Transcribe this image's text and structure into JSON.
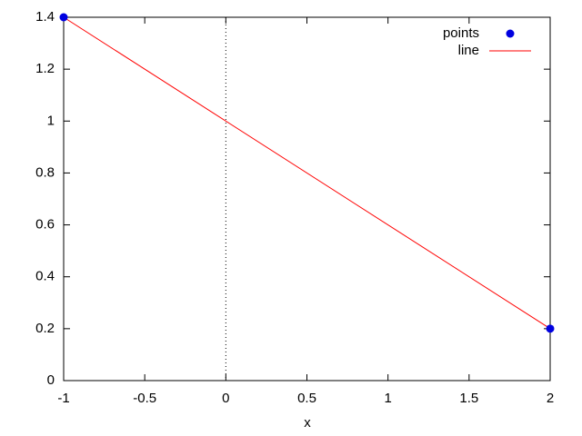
{
  "chart_data": {
    "type": "line",
    "xlabel": "x",
    "xlim": [
      -1,
      2
    ],
    "xticks": [
      -1,
      -0.5,
      0,
      0.5,
      1,
      1.5,
      2
    ],
    "ylim": [
      0,
      1.4
    ],
    "yticks": [
      0,
      0.2,
      0.4,
      0.6,
      0.8,
      1,
      1.2,
      1.4
    ],
    "zero_axis": true,
    "legend": "top-right",
    "series": [
      {
        "name": "points",
        "mode": "markers",
        "color": "#0000e0",
        "x": [
          -1,
          2
        ],
        "values": [
          1.4,
          0.2
        ]
      },
      {
        "name": "line",
        "mode": "lines",
        "color": "#ff0000",
        "x": [
          -1,
          2
        ],
        "values": [
          1.4,
          0.2
        ]
      }
    ]
  }
}
